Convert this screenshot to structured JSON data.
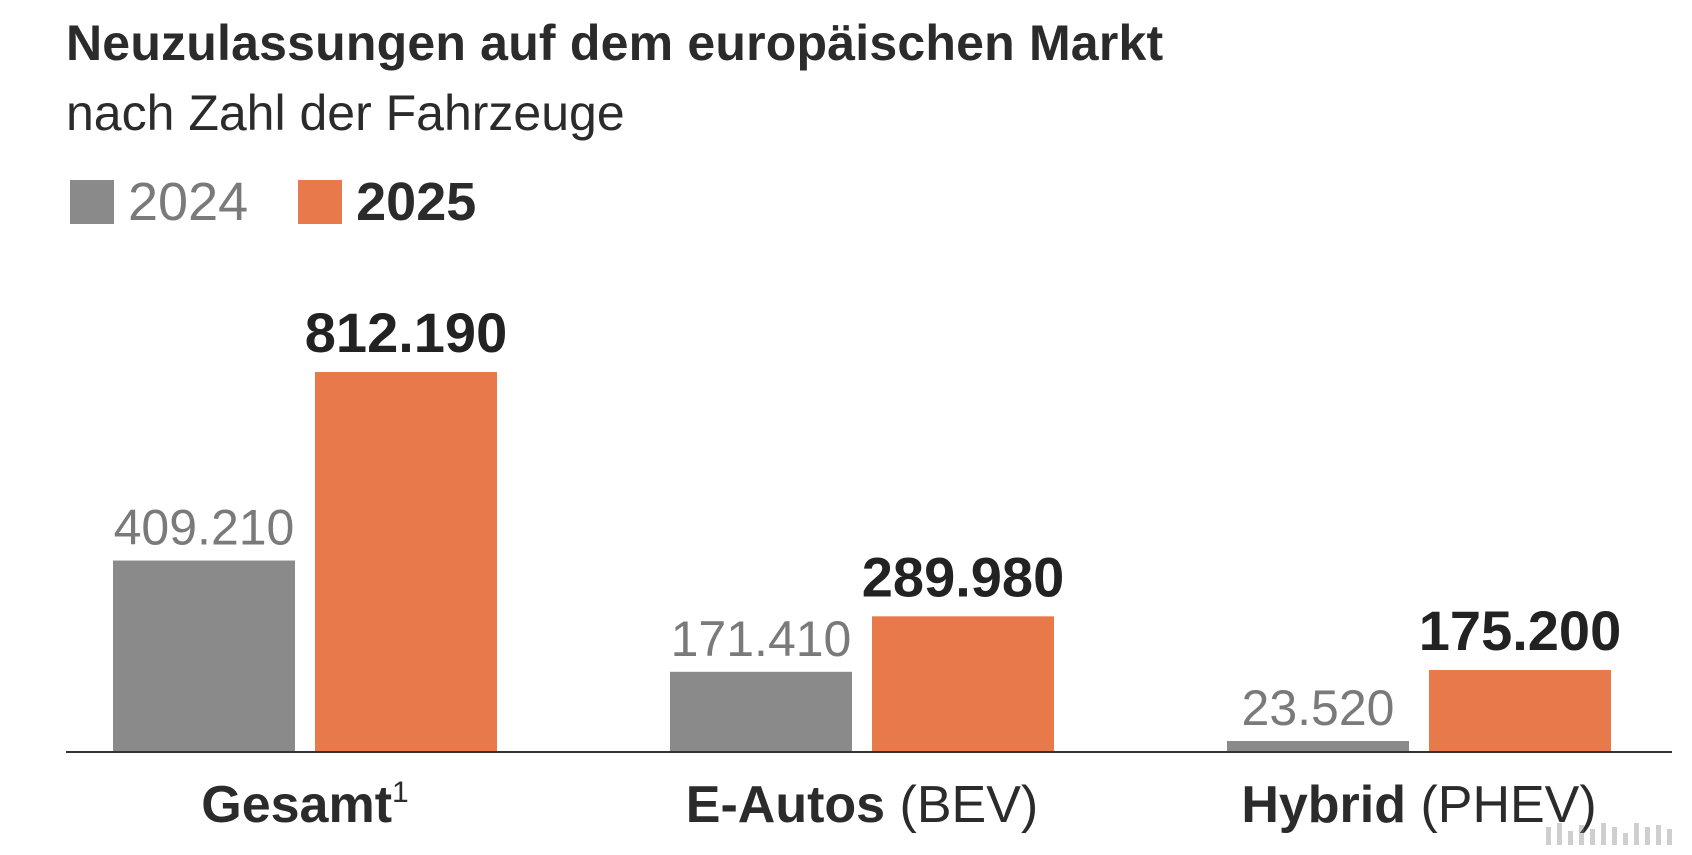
{
  "title": "Neuzulassungen auf dem europäischen Markt",
  "subtitle": "nach Zahl der Fahrzeuge",
  "legend": [
    {
      "label": "2024",
      "color": "#8a8a8a"
    },
    {
      "label": "2025",
      "color": "#e8794a"
    }
  ],
  "chart_data": {
    "type": "bar",
    "title": "Neuzulassungen auf dem europäischen Markt",
    "subtitle": "nach Zahl der Fahrzeuge",
    "categories": [
      {
        "main": "Gesamt",
        "sup": "1",
        "sub": ""
      },
      {
        "main": "E-Autos",
        "sup": "",
        "sub": " (BEV)"
      },
      {
        "main": "Hybrid",
        "sup": "",
        "sub": " (PHEV)"
      }
    ],
    "series": [
      {
        "name": "2024",
        "color": "#8a8a8a",
        "values": [
          409210,
          171410,
          23520
        ],
        "labels": [
          "409.210",
          "171.410",
          "23.520"
        ]
      },
      {
        "name": "2025",
        "color": "#e8794a",
        "values": [
          812190,
          289980,
          175200
        ],
        "labels": [
          "812.190",
          "289.980",
          "175.200"
        ]
      }
    ],
    "ylim": [
      0,
      812190
    ],
    "grid": false,
    "xlabel": "",
    "ylabel": ""
  }
}
